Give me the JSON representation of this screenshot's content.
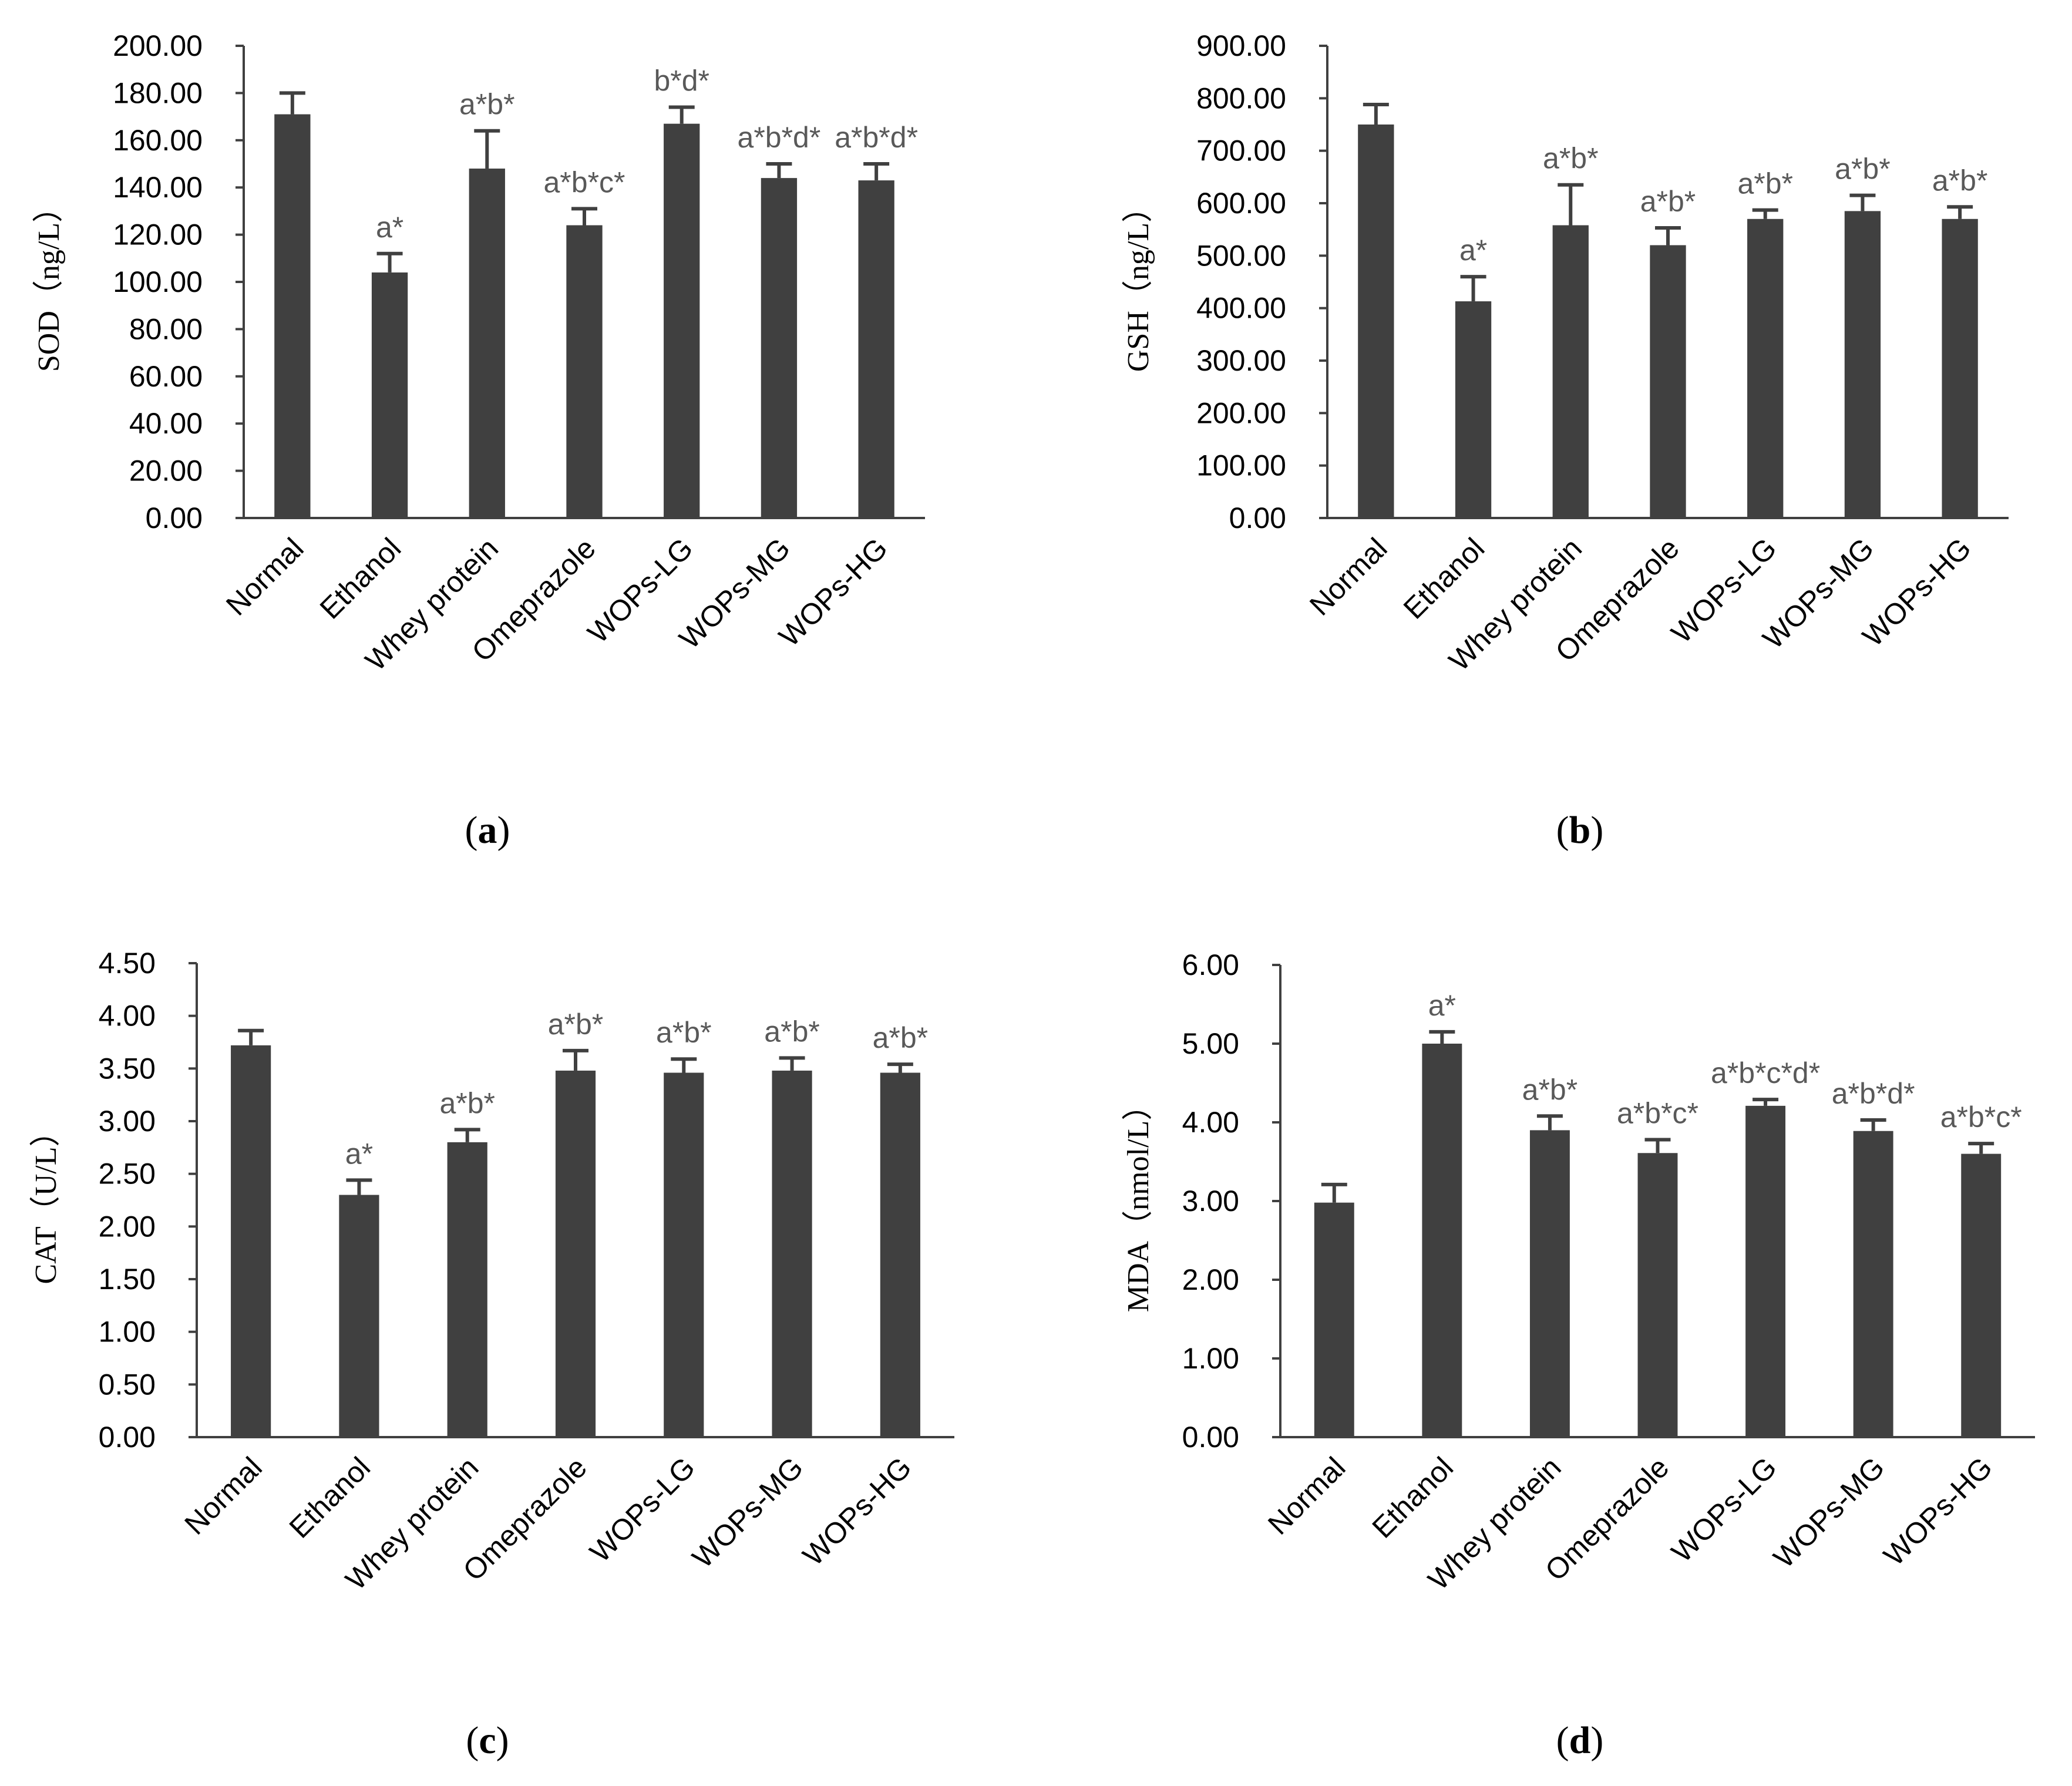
{
  "colors": {
    "bar": "#404040",
    "significance_text": "#595959",
    "axis": "#404040"
  },
  "chart_data": [
    {
      "id": "a",
      "type": "bar",
      "panel_label": "a",
      "ylabel": "SOD（ng/L）",
      "ylim": [
        0,
        200
      ],
      "ytick_step": 20,
      "tick_decimals": 2,
      "categories": [
        "Normal",
        "Ethanol",
        "Whey protein",
        "Omeprazole",
        "WOPs-LG",
        "WOPs-MG",
        "WOPs-HG"
      ],
      "values": [
        171,
        104,
        148,
        124,
        167,
        144,
        143
      ],
      "errors": [
        9,
        8,
        16,
        7,
        7,
        6,
        7
      ],
      "significance": [
        "",
        "a*",
        "a*b*",
        "a*b*c*",
        "b*d*",
        "a*b*d*",
        "a*b*d*"
      ]
    },
    {
      "id": "b",
      "type": "bar",
      "panel_label": "b",
      "ylabel": "GSH（ng/L）",
      "ylim": [
        0,
        900
      ],
      "ytick_step": 100,
      "tick_decimals": 2,
      "categories": [
        "Normal",
        "Ethanol",
        "Whey protein",
        "Omeprazole",
        "WOPs-LG",
        "WOPs-MG",
        "WOPs-HG"
      ],
      "values": [
        750,
        413,
        558,
        520,
        570,
        585,
        570
      ],
      "errors": [
        38,
        47,
        77,
        33,
        17,
        30,
        23
      ],
      "significance": [
        "",
        "a*",
        "a*b*",
        "a*b*",
        "a*b*",
        "a*b*",
        "a*b*"
      ]
    },
    {
      "id": "c",
      "type": "bar",
      "panel_label": "c",
      "ylabel": "CAT（U/L）",
      "ylim": [
        0,
        4.5
      ],
      "ytick_step": 0.5,
      "tick_decimals": 2,
      "categories": [
        "Normal",
        "Ethanol",
        "Whey protein",
        "Omeprazole",
        "WOPs-LG",
        "WOPs-MG",
        "WOPs-HG"
      ],
      "values": [
        3.72,
        2.3,
        2.8,
        3.48,
        3.46,
        3.48,
        3.46
      ],
      "errors": [
        0.14,
        0.14,
        0.12,
        0.19,
        0.13,
        0.12,
        0.08
      ],
      "significance": [
        "",
        "a*",
        "a*b*",
        "a*b*",
        "a*b*",
        "a*b*",
        "a*b*"
      ]
    },
    {
      "id": "d",
      "type": "bar",
      "panel_label": "d",
      "ylabel": "MDA（nmol/L）",
      "ylim": [
        0,
        6
      ],
      "ytick_step": 1,
      "tick_decimals": 2,
      "categories": [
        "Normal",
        "Ethanol",
        "Whey protein",
        "Omeprazole",
        "WOPs-LG",
        "WOPs-MG",
        "WOPs-HG"
      ],
      "values": [
        2.98,
        5.0,
        3.9,
        3.61,
        4.21,
        3.89,
        3.6
      ],
      "errors": [
        0.23,
        0.15,
        0.18,
        0.17,
        0.08,
        0.14,
        0.13
      ],
      "significance": [
        "",
        "a*",
        "a*b*",
        "a*b*c*",
        "a*b*c*d*",
        "a*b*d*",
        "a*b*c*"
      ]
    }
  ]
}
